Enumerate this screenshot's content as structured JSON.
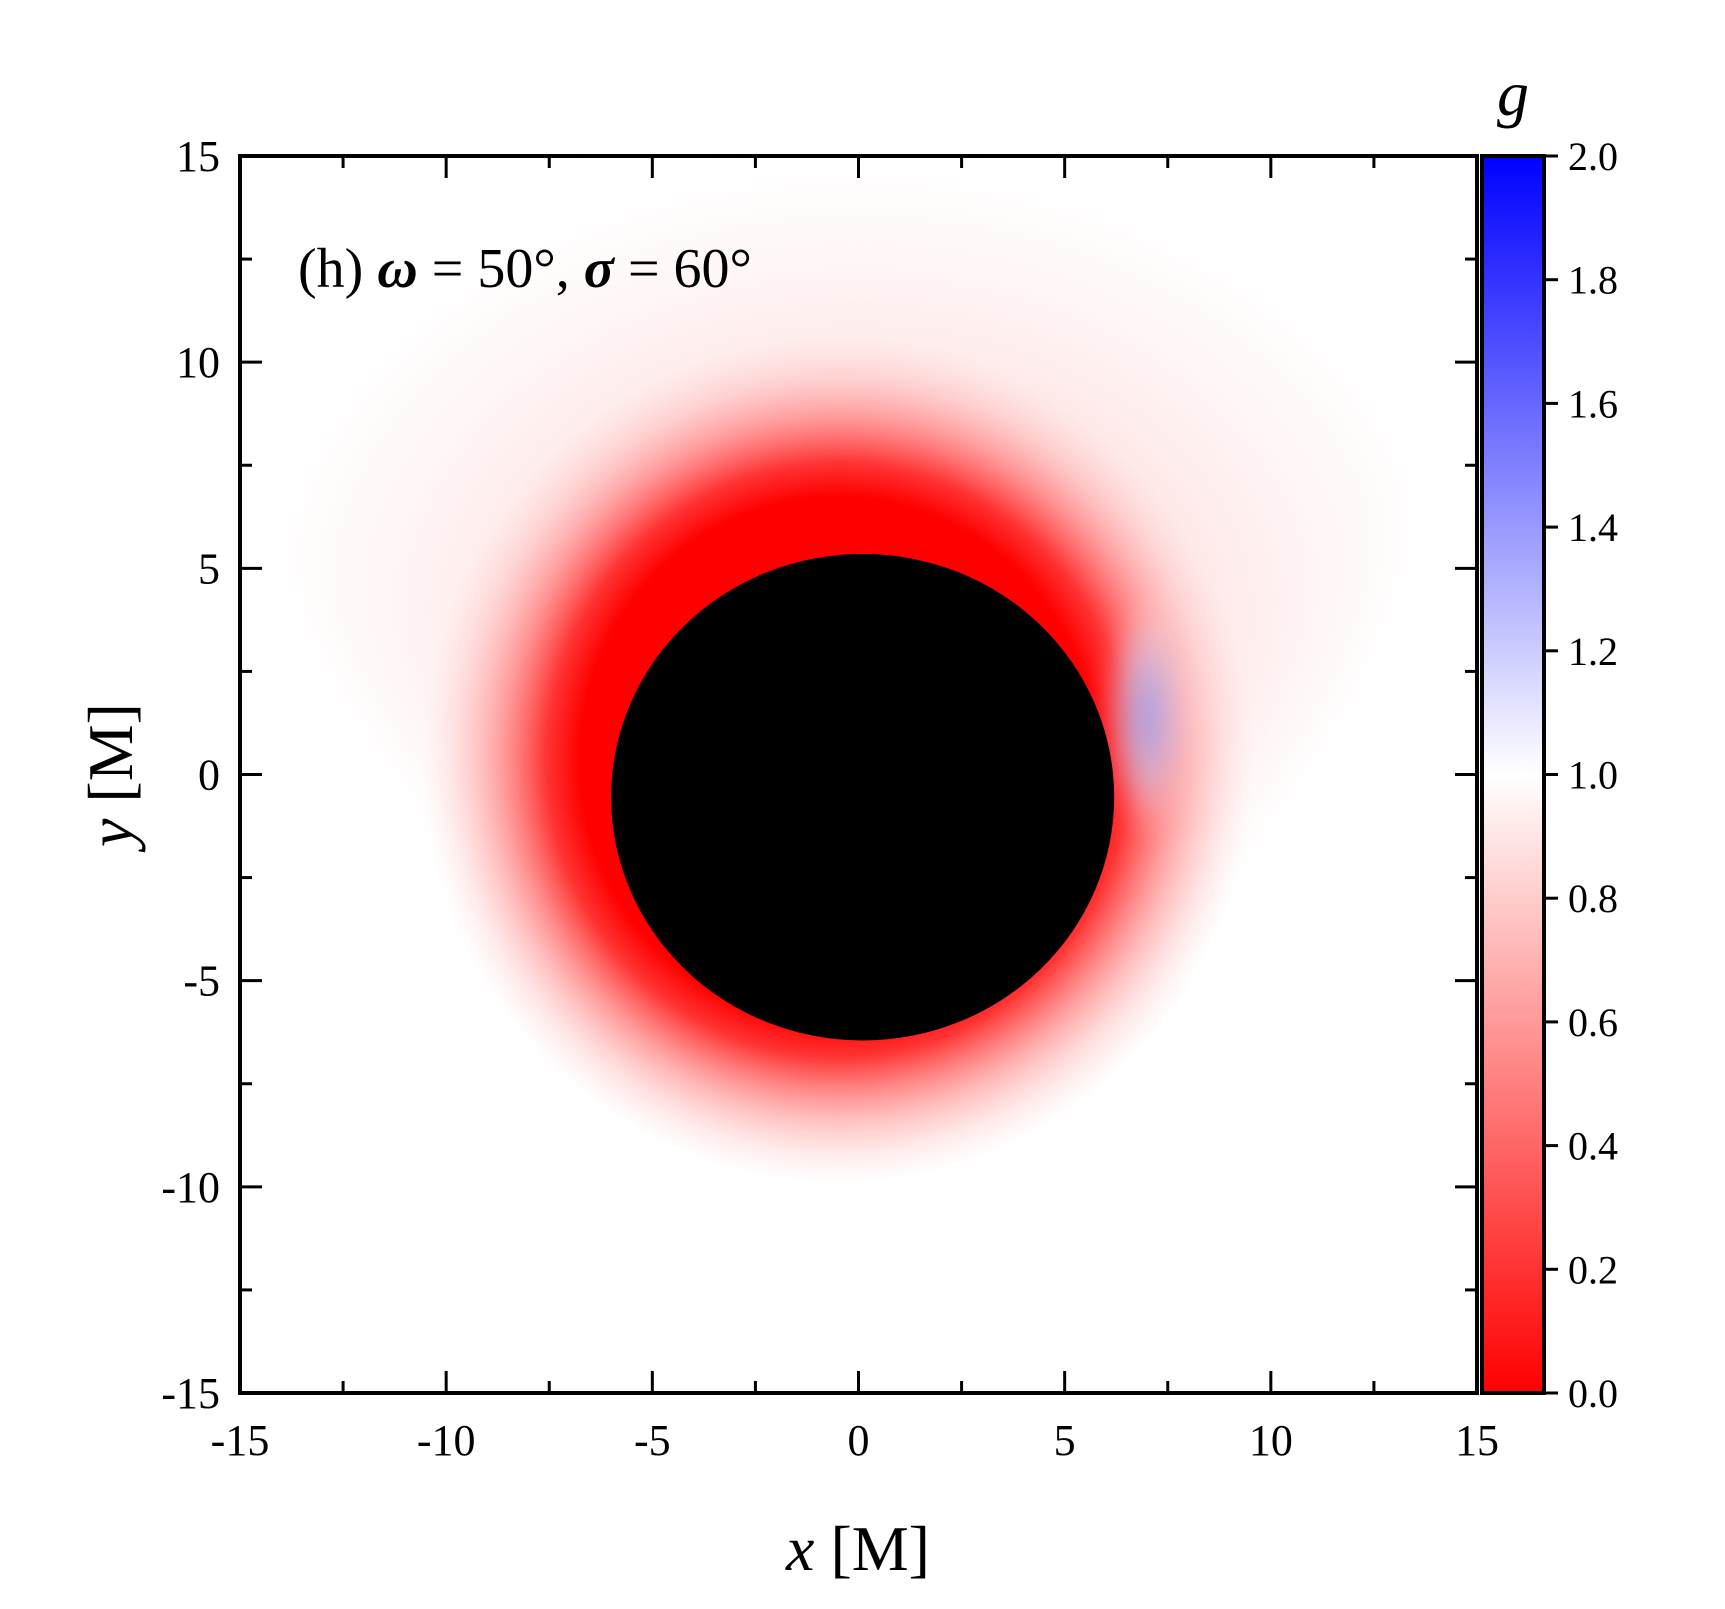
{
  "chart_data": {
    "type": "heatmap",
    "title": "",
    "panel_label": {
      "prefix": "(h) ",
      "omega_symbol": "ω",
      "omega_rest": " = 50°, ",
      "sigma_symbol": "σ",
      "sigma_rest": " = 60°"
    },
    "xlabel": {
      "var": "x",
      "unit": " [M]"
    },
    "ylabel": {
      "var": "y",
      "unit": " [M]"
    },
    "xlim": [
      -15,
      15
    ],
    "ylim": [
      -15,
      15
    ],
    "x_ticks": [
      "-15",
      "-10",
      "-5",
      "0",
      "5",
      "10",
      "15"
    ],
    "x_tick_values": [
      -15,
      -10,
      -5,
      0,
      5,
      10,
      15
    ],
    "y_ticks": [
      "-15",
      "-10",
      "-5",
      "0",
      "5",
      "10",
      "15"
    ],
    "y_tick_values": [
      -15,
      -10,
      -5,
      0,
      5,
      10,
      15
    ],
    "colorbar": {
      "title": "g",
      "range": [
        0.0,
        2.0
      ],
      "ticks": [
        "0.0",
        "0.2",
        "0.4",
        "0.6",
        "0.8",
        "1.0",
        "1.2",
        "1.4",
        "1.6",
        "1.8",
        "2.0"
      ],
      "tick_values": [
        0.0,
        0.2,
        0.4,
        0.6,
        0.8,
        1.0,
        1.2,
        1.4,
        1.6,
        1.8,
        2.0
      ],
      "colors": {
        "low": "#ff0000",
        "mid": "#ffffff",
        "high": "#0000ff"
      }
    },
    "shadow": {
      "color": "#000000",
      "center": [
        0.1,
        -0.55
      ],
      "radius_x": 6.1,
      "radius_y": 5.9
    },
    "redshift_halo": {
      "min_g": 0.0,
      "description_value_edge": 0.95
    },
    "blueshift_lobe": {
      "center": [
        7.0,
        1.4
      ],
      "max_g": 1.25
    }
  }
}
